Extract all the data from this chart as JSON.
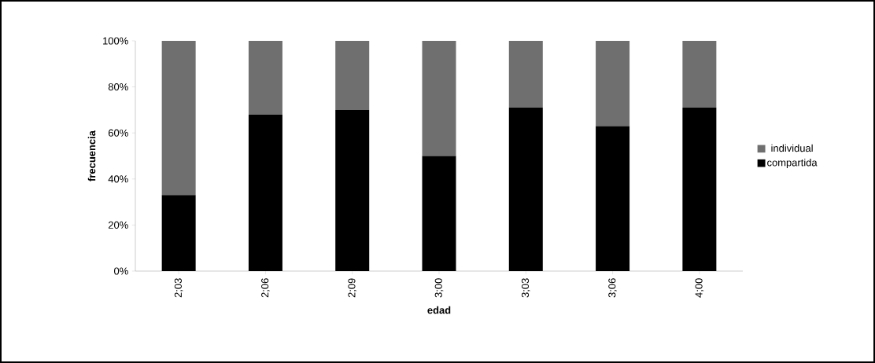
{
  "chart_data": {
    "type": "bar",
    "stacked": true,
    "xlabel": "edad",
    "ylabel": "frecuencia",
    "categories": [
      "2;03",
      "2;06",
      "2;09",
      "3;00",
      "3;03",
      "3;06",
      "4;00"
    ],
    "series": [
      {
        "name": "compartida",
        "color": "#000000",
        "values": [
          33,
          68,
          70,
          50,
          71,
          63,
          71
        ]
      },
      {
        "name": "individual",
        "color": "#6f6f6f",
        "values": [
          67,
          32,
          30,
          50,
          29,
          37,
          29
        ]
      }
    ],
    "ylim": [
      0,
      100
    ],
    "yticks": [
      {
        "value": 0,
        "label": "0%"
      },
      {
        "value": 20,
        "label": "20%"
      },
      {
        "value": 40,
        "label": "40%"
      },
      {
        "value": 60,
        "label": "60%"
      },
      {
        "value": 80,
        "label": "80%"
      },
      {
        "value": 100,
        "label": "100%"
      }
    ],
    "legend": "right",
    "grid": false
  }
}
